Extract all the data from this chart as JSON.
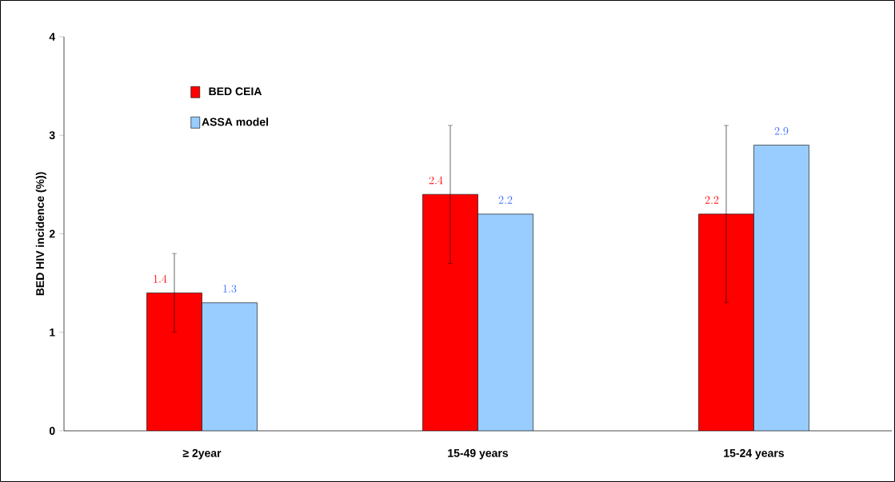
{
  "chart_data": {
    "type": "bar",
    "ylabel": "BED HIV incidence (%))",
    "categories": [
      "≥ 2year",
      "15-49 years",
      "15-24 years"
    ],
    "series": [
      {
        "name": "BED CEIA",
        "color": "#ff0000",
        "values": [
          1.4,
          2.4,
          2.2
        ],
        "errors": [
          [
            1.0,
            1.8
          ],
          [
            1.7,
            3.1
          ],
          [
            1.3,
            3.1
          ]
        ]
      },
      {
        "name": "ASSA model",
        "color": "#99ccff",
        "values": [
          1.3,
          2.2,
          2.9
        ]
      }
    ],
    "ylim": [
      0,
      4
    ],
    "yticks": [
      0,
      1,
      2,
      3,
      4
    ],
    "grid": false,
    "legend": "top left",
    "data_labels": true
  }
}
